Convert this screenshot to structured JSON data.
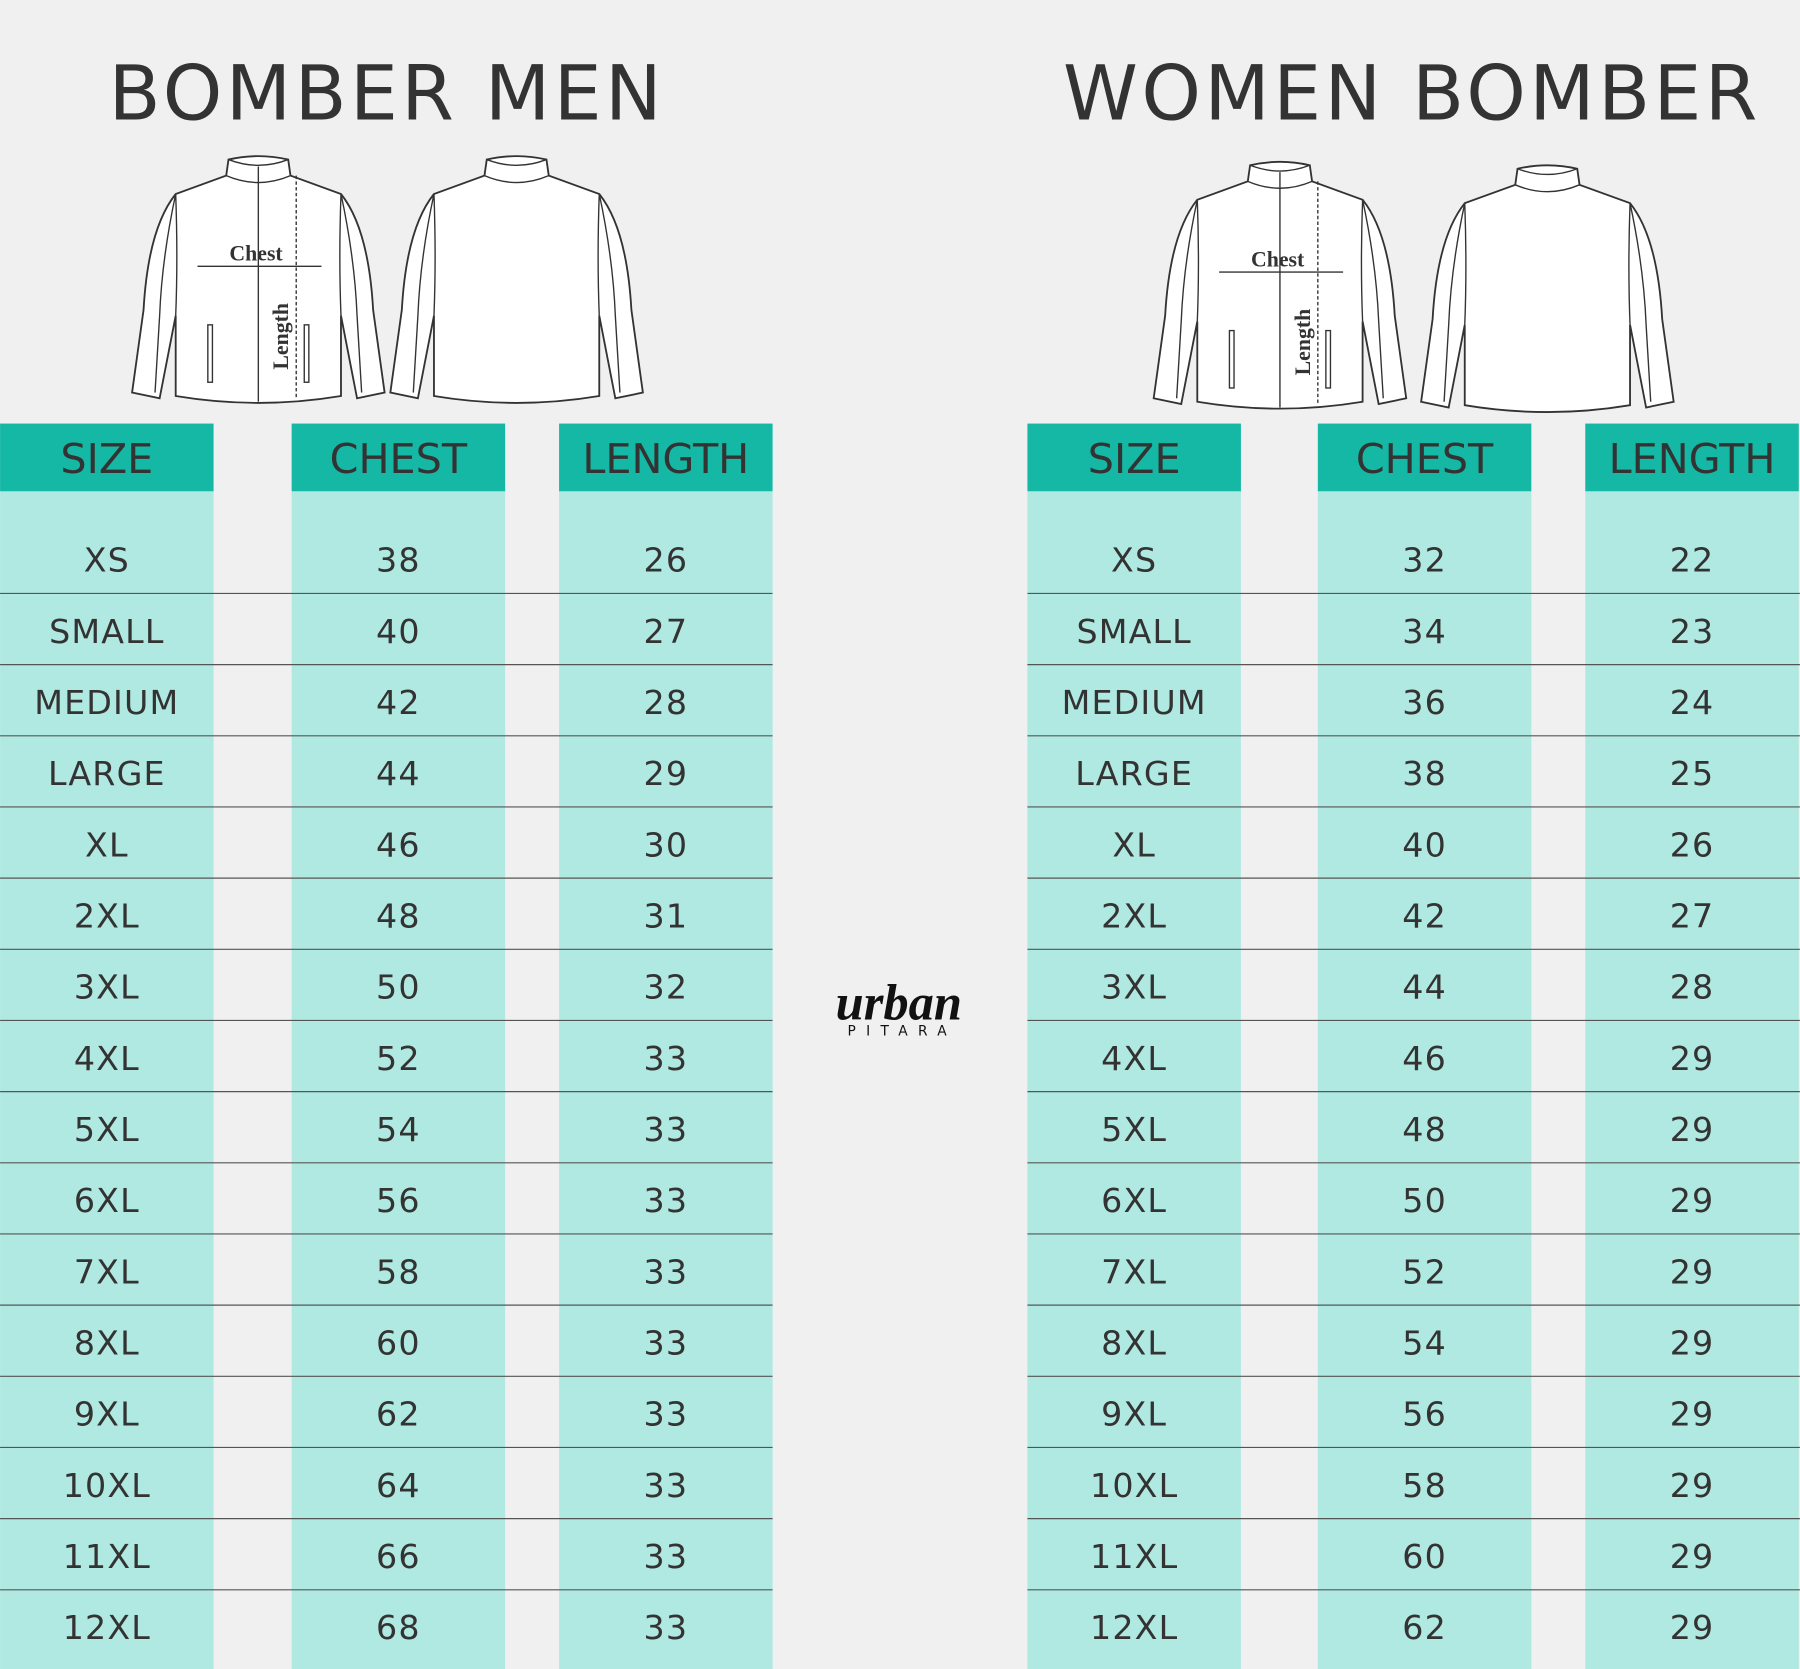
{
  "men": {
    "title": "BOMBER MEN",
    "diagram": {
      "chest": "Chest",
      "length": "Length"
    },
    "table": {
      "header": [
        "SIZE",
        "CHEST",
        "LENGTH"
      ],
      "rows": [
        [
          "XS",
          38,
          26
        ],
        [
          "SMALL",
          40,
          27
        ],
        [
          "MEDIUM",
          42,
          28
        ],
        [
          "LARGE",
          44,
          29
        ],
        [
          "XL",
          46,
          30
        ],
        [
          "2XL",
          48,
          31
        ],
        [
          "3XL",
          50,
          32
        ],
        [
          "4XL",
          52,
          33
        ],
        [
          "5XL",
          54,
          33
        ],
        [
          "6XL",
          56,
          33
        ],
        [
          "7XL",
          58,
          33
        ],
        [
          "8XL",
          60,
          33
        ],
        [
          "9XL",
          62,
          33
        ],
        [
          "10XL",
          64,
          33
        ],
        [
          "11XL",
          66,
          33
        ],
        [
          "12XL",
          68,
          33
        ]
      ]
    }
  },
  "women": {
    "title": "WOMEN BOMBER",
    "diagram": {
      "chest": "Chest",
      "length": "Length"
    },
    "table": {
      "header": [
        "SIZE",
        "CHEST",
        "LENGTH"
      ],
      "rows": [
        [
          "XS",
          32,
          22
        ],
        [
          "SMALL",
          34,
          23
        ],
        [
          "MEDIUM",
          36,
          24
        ],
        [
          "LARGE",
          38,
          25
        ],
        [
          "XL",
          40,
          26
        ],
        [
          "2XL",
          42,
          27
        ],
        [
          "3XL",
          44,
          28
        ],
        [
          "4XL",
          46,
          29
        ],
        [
          "5XL",
          48,
          29
        ],
        [
          "6XL",
          50,
          29
        ],
        [
          "7XL",
          52,
          29
        ],
        [
          "8XL",
          54,
          29
        ],
        [
          "9XL",
          56,
          29
        ],
        [
          "10XL",
          58,
          29
        ],
        [
          "11XL",
          60,
          29
        ],
        [
          "12XL",
          62,
          29
        ]
      ]
    }
  },
  "logo": {
    "name": "urban",
    "tagline": "PITARA"
  }
}
